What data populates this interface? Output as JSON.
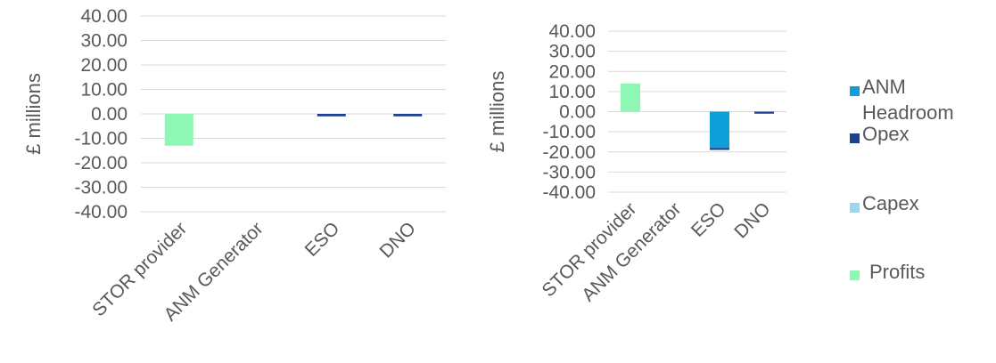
{
  "colors": {
    "anm_headroom": "#0e9fd8",
    "opex": "#1d3f8f",
    "capex": "#9fd6ee",
    "profits": "#8ff7b4",
    "grid": "#d9d9d9",
    "text": "#595959"
  },
  "legend": {
    "items": [
      {
        "label_lines": [
          "ANM",
          "Headroom"
        ],
        "color_key": "anm_headroom"
      },
      {
        "label_lines": [
          "Opex"
        ],
        "color_key": "opex"
      },
      {
        "label_lines": [
          "Capex"
        ],
        "color_key": "capex"
      },
      {
        "label_lines": [
          "Profits"
        ],
        "color_key": "profits"
      }
    ]
  },
  "chart_data": [
    {
      "type": "bar",
      "stacked": true,
      "ylabel": "£ millions",
      "ylim": [
        -40,
        40
      ],
      "ytick_step": 10,
      "ytick_labels": [
        "40.00",
        "30.00",
        "20.00",
        "10.00",
        "0.00",
        "-10.00",
        "-20.00",
        "-30.00",
        "-40.00"
      ],
      "grid": true,
      "categories": [
        "STOR provider",
        "ANM Generator",
        "ESO",
        "DNO"
      ],
      "series": [
        {
          "name": "ANM Headroom",
          "color_key": "anm_headroom",
          "values": [
            0,
            0,
            0,
            0
          ]
        },
        {
          "name": "Opex",
          "color_key": "opex",
          "values": [
            0,
            0,
            -1.0,
            -1.0
          ]
        },
        {
          "name": "Capex",
          "color_key": "capex",
          "values": [
            0,
            0,
            0,
            0
          ]
        },
        {
          "name": "Profits",
          "color_key": "profits",
          "values": [
            -13.0,
            0,
            0,
            0
          ]
        }
      ]
    },
    {
      "type": "bar",
      "stacked": true,
      "ylabel": "£ millions",
      "ylim": [
        -40,
        40
      ],
      "ytick_step": 10,
      "ytick_labels": [
        "40.00",
        "30.00",
        "20.00",
        "10.00",
        "0.00",
        "-10.00",
        "-20.00",
        "-30.00",
        "-40.00"
      ],
      "grid": true,
      "legend_position": "right",
      "categories": [
        "STOR provider",
        "ANM Generator",
        "ESO",
        "DNO"
      ],
      "series": [
        {
          "name": "ANM Headroom",
          "color_key": "anm_headroom",
          "values": [
            0,
            0,
            -18.0,
            0
          ]
        },
        {
          "name": "Opex",
          "color_key": "opex",
          "values": [
            0,
            0,
            -1.0,
            -1.0
          ]
        },
        {
          "name": "Capex",
          "color_key": "capex",
          "values": [
            0,
            0,
            0,
            0
          ]
        },
        {
          "name": "Profits",
          "color_key": "profits",
          "values": [
            14.0,
            0,
            0,
            0
          ]
        }
      ]
    }
  ]
}
